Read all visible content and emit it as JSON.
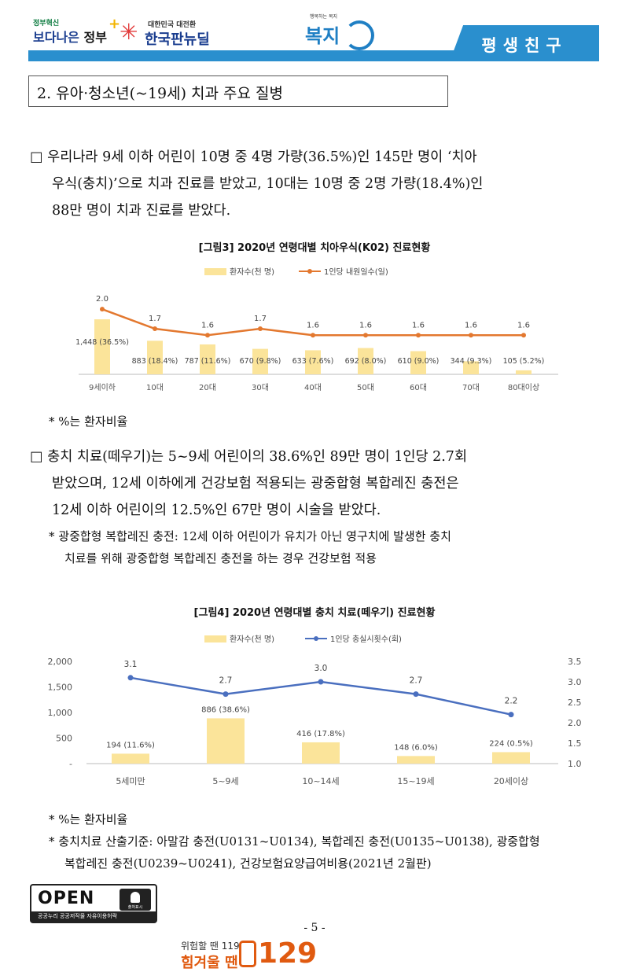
{
  "header": {
    "logo1_small": "정부혁신",
    "logo1_big_a": "보다나은",
    "logo1_big_b": "정부",
    "logo2_small": "대한민국 대전환",
    "logo2_big": "한국판뉴딜",
    "logo3_small": "행복하는 복지",
    "logo3_big": "복지",
    "tab_label": "평생친구",
    "accent_color": "#2a8fce"
  },
  "section_title": "2. 유아·청소년(~19세) 치과 주요 질병",
  "paragraph1": {
    "marker": "□",
    "lines": [
      "우리나라 9세 이하 어린이 10명 중 4명 가량(36.5%)인 145만 명이 ‘치아",
      "우식(충치)’으로 치과 진료를 받았고, 10대는 10명 중 2명 가량(18.4%)인",
      "88만 명이 치과 진료를 받았다."
    ]
  },
  "chart3": {
    "title": "[그림3] 2020년 연령대별 치아우식(K02) 진료현황",
    "legend_bar": "환자수(천 명)",
    "legend_line": "1인당 내원일수(일)",
    "categories": [
      "9세이하",
      "10대",
      "20대",
      "30대",
      "40대",
      "50대",
      "60대",
      "70대",
      "80대이상"
    ],
    "bar_labels": [
      "1,448 (36.5%)",
      "883 (18.4%)",
      "787 (11.6%)",
      "670 (9.8%)",
      "633 (7.6%)",
      "692 (8.0%)",
      "610 (9.0%)",
      "344 (9.3%)",
      "105 (5.2%)"
    ],
    "line_labels": [
      "2.0",
      "1.7",
      "1.6",
      "1.7",
      "1.6",
      "1.6",
      "1.6",
      "1.6",
      "1.6"
    ],
    "note": "* %는 환자비율"
  },
  "paragraph2": {
    "marker": "□",
    "lines": [
      "충치 치료(떼우기)는 5~9세 어린이의 38.6%인 89만 명이 1인당 2.7회",
      "받았으며, 12세 이하에게 건강보험 적용되는 광중합형 복합레진 충전은",
      "12세 이하 어린이의 12.5%인 67만 명이 시술을 받았다."
    ],
    "footnote_lines": [
      "* 광중합형 복합레진 충전: 12세 이하 어린이가 유치가 아닌 영구치에 발생한 충치",
      "치료를 위해 광중합형 복합레진 충전을 하는 경우 건강보험 적용"
    ]
  },
  "chart4": {
    "title": "[그림4] 2020년 연령대별 충치 치료(떼우기) 진료현황",
    "legend_bar": "환자수(천 명)",
    "legend_line": "1인당 충실시횟수(회)",
    "categories": [
      "5세미만",
      "5~9세",
      "10~14세",
      "15~19세",
      "20세이상"
    ],
    "bar_labels": [
      "194 (11.6%)",
      "886 (38.6%)",
      "416 (17.8%)",
      "148 (6.0%)",
      "224 (0.5%)"
    ],
    "line_labels": [
      "3.1",
      "2.7",
      "3.0",
      "2.7",
      "2.2"
    ],
    "y_left_ticks": [
      "2,000",
      "1,500",
      "1,000",
      "500",
      "-"
    ],
    "y_right_ticks": [
      "3.5",
      "3.0",
      "2.5",
      "2.0",
      "1.5",
      "1.0"
    ],
    "note1": "* %는 환자비율",
    "note2_lines": [
      "* 충치치료 산출기준: 아말감 충전(U0131~U0134), 복합레진 충전(U0135~U0138), 광중합형",
      "복합레진 충전(U0239~U0241), 건강보험요양급여비용(2021년 2월판)"
    ]
  },
  "chart_data": [
    {
      "type": "bar",
      "title": "[그림3] 2020년 연령대별 치아우식(K02) 진료현황",
      "categories": [
        "9세이하",
        "10대",
        "20대",
        "30대",
        "40대",
        "50대",
        "60대",
        "70대",
        "80대이상"
      ],
      "series": [
        {
          "name": "환자수(천 명)",
          "type": "bar",
          "values": [
            1448,
            883,
            787,
            670,
            633,
            692,
            610,
            344,
            105
          ]
        },
        {
          "name": "1인당 내원일수(일)",
          "type": "line",
          "values": [
            2.0,
            1.7,
            1.6,
            1.7,
            1.6,
            1.6,
            1.6,
            1.6,
            1.6
          ]
        }
      ],
      "percent": [
        36.5,
        18.4,
        11.6,
        9.8,
        7.6,
        8.0,
        9.0,
        9.3,
        5.2
      ],
      "ylim_bar": [
        0,
        2400
      ],
      "ylim_line": [
        1.0,
        2.4
      ]
    },
    {
      "type": "bar",
      "title": "[그림4] 2020년 연령대별 충치 치료(떼우기) 진료현황",
      "categories": [
        "5세미만",
        "5~9세",
        "10~14세",
        "15~19세",
        "20세이상"
      ],
      "series": [
        {
          "name": "환자수(천 명)",
          "type": "bar",
          "values": [
            194,
            886,
            416,
            148,
            224
          ]
        },
        {
          "name": "1인당 충실시횟수(회)",
          "type": "line",
          "values": [
            3.1,
            2.7,
            3.0,
            2.7,
            2.2
          ]
        }
      ],
      "percent": [
        11.6,
        38.6,
        17.8,
        6.0,
        0.5
      ],
      "ylim_left": [
        0,
        2000
      ],
      "ylim_right": [
        1.0,
        3.5
      ]
    }
  ],
  "footer": {
    "open_word": "OPEN",
    "open_badge": "출처표시",
    "open_bottom": "공공누리  공공저작물 자유이용허락",
    "page_number": "- 5 -",
    "hotline_small": "위험할 땐 119",
    "hotline_big": "힘겨울 땐",
    "hotline_number": "129"
  }
}
